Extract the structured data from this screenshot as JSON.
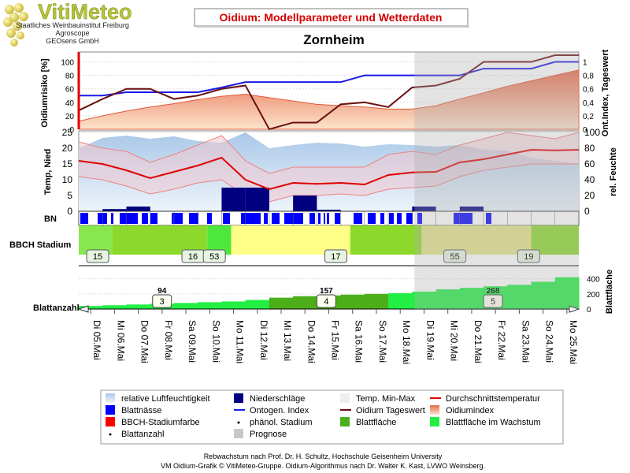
{
  "logo": {
    "name": "VitiMeteo",
    "lines": [
      "Staatliches Weinbauinstitut Freiburg",
      "Agroscope",
      "GEOsens GmbH"
    ]
  },
  "header": {
    "title": "Oidium: Modellparameter und Wetterdaten",
    "location": "Zornheim"
  },
  "footer": {
    "line1": "Rebwachstum nach Prof. Dr. H. Schultz, Hochschule Geisenheim University",
    "line2": "VM Oidium-Grafik © VitiMeteo-Gruppe. Oidium-Algorithmus nach Dr. Walter K. Kast, LVWO Weinsberg."
  },
  "colors": {
    "ontogen": "#1a1ae6",
    "tageswert": "#6b0f0f",
    "temp": "#e00000",
    "tempband": "#f4a0a0",
    "humidity": "#a9c8e8",
    "rain": "#000080",
    "leafwet": "#0000ff",
    "blattflaeche": "#4caf1a",
    "blattwachstum": "#22ee44",
    "prognose": "#c8c8c8",
    "title_red": "#d40000"
  },
  "chart_data": {
    "type": "line",
    "x": [
      "Di 05.Mai",
      "Mi 06.Mai",
      "Do 07.Mai",
      "Fr 08.Mai",
      "Sa 09.Mai",
      "So 10.Mai",
      "Mo 11.Mai",
      "Di 12.Mai",
      "Mi 13.Mai",
      "Do 14.Mai",
      "Fr 15.Mai",
      "Sa 16.Mai",
      "So 17.Mai",
      "Mo 18.Mai",
      "Di 19.Mai",
      "Mi 20.Mai",
      "Do 21.Mai",
      "Fr 22.Mai",
      "Sa 23.Mai",
      "So 24.Mai",
      "Mo 25.Mai"
    ],
    "prognose_start_index": 14,
    "panel1": {
      "ylabel": "Oidiumrisiko [%]",
      "ylabel_right": "Ont.Index, Tageswert",
      "ylim": [
        0,
        110
      ],
      "yticks": [
        "0",
        "20",
        "40",
        "60",
        "80",
        "100"
      ],
      "ylim_right": [
        0,
        1.1
      ],
      "yticks_right": [
        "0",
        "0,2",
        "0,4",
        "0,6",
        "0,8",
        "1"
      ],
      "oidiumindex": [
        12,
        20,
        27,
        33,
        38,
        44,
        49,
        52,
        47,
        42,
        37,
        35,
        33,
        30,
        30,
        35,
        45,
        54,
        64,
        72,
        80,
        88
      ],
      "ontogen_index": [
        0.5,
        0.5,
        0.55,
        0.55,
        0.55,
        0.55,
        0.62,
        0.7,
        0.7,
        0.7,
        0.7,
        0.7,
        0.8,
        0.8,
        0.8,
        0.8,
        0.8,
        0.9,
        0.9,
        0.9,
        1.0,
        1.0
      ],
      "tageswert": [
        0.28,
        0.45,
        0.6,
        0.6,
        0.45,
        0.5,
        0.6,
        0.65,
        0.0,
        0.1,
        0.1,
        0.37,
        0.4,
        0.33,
        0.62,
        0.65,
        0.75,
        1.0,
        1.0,
        1.0,
        1.1,
        1.1
      ]
    },
    "panel2": {
      "ylabel": "Temp, Nied",
      "ylabel_right": "rel. Feuchte",
      "ylim": [
        0,
        25
      ],
      "yticks": [
        "0",
        "5",
        "10",
        "15",
        "20",
        "25"
      ],
      "ylim_right": [
        0,
        100
      ],
      "yticks_right": [
        "0",
        "20",
        "40",
        "60",
        "80",
        "100"
      ],
      "temp_avg": [
        16,
        15,
        13,
        10.5,
        12.5,
        14.5,
        17,
        10,
        7,
        9,
        8.7,
        9,
        8.5,
        11.5,
        12.3,
        12.5,
        15.5,
        16.5,
        18,
        19.5,
        19.3,
        19.5
      ],
      "temp_min": [
        11,
        10,
        8,
        5.5,
        7,
        9,
        10,
        5,
        3,
        5,
        5,
        5.5,
        5,
        7,
        7.5,
        8,
        11,
        13,
        14,
        15,
        15,
        15
      ],
      "temp_max": [
        22,
        20,
        19,
        15.5,
        18,
        21,
        24,
        16,
        12,
        14,
        14,
        14,
        14,
        18,
        19,
        18,
        21,
        23,
        25,
        24,
        23,
        25
      ],
      "humidity": [
        80,
        93,
        96,
        92,
        95,
        89,
        87,
        106,
        80,
        84,
        87,
        86,
        82,
        85,
        84,
        82,
        84,
        78,
        77,
        68,
        64,
        60
      ],
      "rain": [
        0,
        0.7,
        1.5,
        0,
        0,
        0,
        7.5,
        7.5,
        0,
        5,
        0.5,
        0,
        0,
        0,
        1.5,
        0,
        1.5,
        0,
        0,
        0,
        0,
        0
      ]
    },
    "bn_label": "BN",
    "panel3": {
      "ylabel": "BBCH Stadium",
      "segments": [
        {
          "from": 0,
          "to": 1.4,
          "color": "#7ce84a",
          "stage": "15"
        },
        {
          "from": 1.4,
          "to": 5.4,
          "color": "#8cd92c",
          "stage": ""
        },
        {
          "from": 5.4,
          "to": 6.4,
          "color": "#4ee03c",
          "stage": ""
        },
        {
          "from": 6.4,
          "to": 11.4,
          "color": "#ffff88",
          "stage": ""
        },
        {
          "from": 11.4,
          "to": 21,
          "color": "#8cd92c",
          "stage": ""
        }
      ],
      "labels": [
        {
          "at": 0.2,
          "text": "15"
        },
        {
          "at": 4.2,
          "text": "16"
        },
        {
          "at": 5.1,
          "text": "53"
        },
        {
          "at": 10.2,
          "text": "17"
        },
        {
          "at": 15.2,
          "text": "55"
        },
        {
          "at": 18.3,
          "text": "19"
        }
      ]
    },
    "panel4": {
      "ylabel": "Blattanzahl",
      "ylabel_right": "Blattfläche",
      "ylim": [
        0,
        500
      ],
      "yticks": [
        "0",
        "200",
        "400"
      ],
      "blattflaeche": [
        40,
        50,
        60,
        70,
        80,
        90,
        100,
        120,
        150,
        170,
        180,
        190,
        200,
        210,
        230,
        260,
        280,
        300,
        320,
        360,
        420,
        480
      ],
      "annotations": [
        {
          "at": 3.1,
          "box": "3",
          "above": "94"
        },
        {
          "at": 10.0,
          "box": "4",
          "above": "157"
        },
        {
          "at": 17.0,
          "box": "5",
          "above": "268"
        }
      ]
    },
    "legend": [
      {
        "label": "relative Luftfeuchtigkeit",
        "swatch": "humidity"
      },
      {
        "label": "Niederschläge",
        "swatch": "rain"
      },
      {
        "label": "Temp. Min-Max",
        "swatch": "tempband"
      },
      {
        "label": "Durchschnittstemperatur",
        "swatch": "temp"
      },
      {
        "label": "Blattnässe",
        "swatch": "leafwet"
      },
      {
        "label": "Ontogen. Index",
        "swatch": "ontogen"
      },
      {
        "label": "Oidium Tageswert",
        "swatch": "tageswert"
      },
      {
        "label": "Oidiumindex",
        "swatch": "oidium"
      },
      {
        "label": "BBCH-Stadiumfarbe",
        "swatch": "bbch"
      },
      {
        "label": "phänol. Stadium",
        "swatch": "dot"
      },
      {
        "label": "Blattfläche",
        "swatch": "blattflaeche"
      },
      {
        "label": "Blattfläche im Wachstum",
        "swatch": "blattwachstum"
      },
      {
        "label": "Blattanzahl",
        "swatch": "dot"
      },
      {
        "label": "Prognose",
        "swatch": "prognose"
      }
    ]
  }
}
